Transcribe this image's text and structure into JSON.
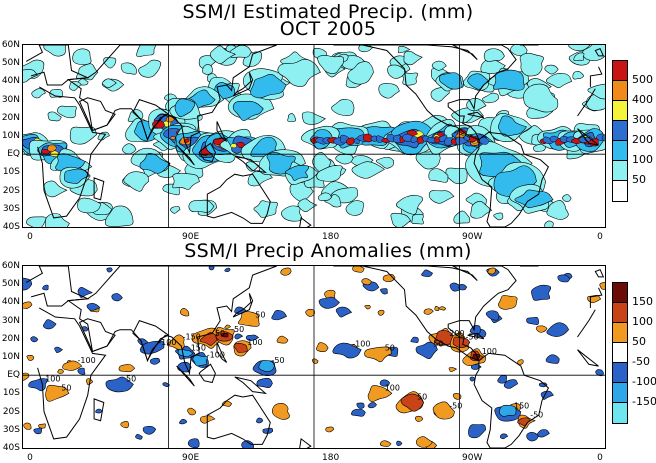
{
  "titles": {
    "top_line1": "SSM/I Estimated Precip. (mm)",
    "top_line2": "OCT 2005",
    "bottom": "SSM/I Precip Anomalies (mm)"
  },
  "axes": {
    "lat_labels": [
      "60N",
      "50N",
      "40N",
      "30N",
      "20N",
      "10N",
      "EQ",
      "10S",
      "20S",
      "30S",
      "40S"
    ],
    "lon_labels": [
      "0",
      "90E",
      "180",
      "90W",
      "0"
    ]
  },
  "colors": {
    "precip_scale": [
      "#ffffff",
      "#8ef0f0",
      "#33bbee",
      "#2d6fd0",
      "#f4f43a",
      "#f08a1a",
      "#c81414"
    ],
    "anomaly_scale": [
      "#6ee6f0",
      "#2ea7e8",
      "#2a62c8",
      "#ffffff",
      "#f19a22",
      "#c84418",
      "#6a0d08"
    ]
  },
  "legend_top": {
    "labels": [
      "500",
      "400",
      "300",
      "200",
      "100",
      "50"
    ]
  },
  "legend_bottom": {
    "labels": [
      "150",
      "100",
      "50",
      "-50",
      "-100",
      "-150"
    ]
  },
  "map_text": {
    "anomaly_contour_labels": [
      "50",
      "-50",
      "100",
      "-100",
      "150",
      "-150",
      "200",
      "50",
      "-50",
      "100",
      "-100",
      "50",
      "50",
      "-50",
      "100",
      "150",
      "-50",
      "50",
      "100",
      "-100",
      "50",
      "-100",
      "50",
      "-50"
    ]
  }
}
